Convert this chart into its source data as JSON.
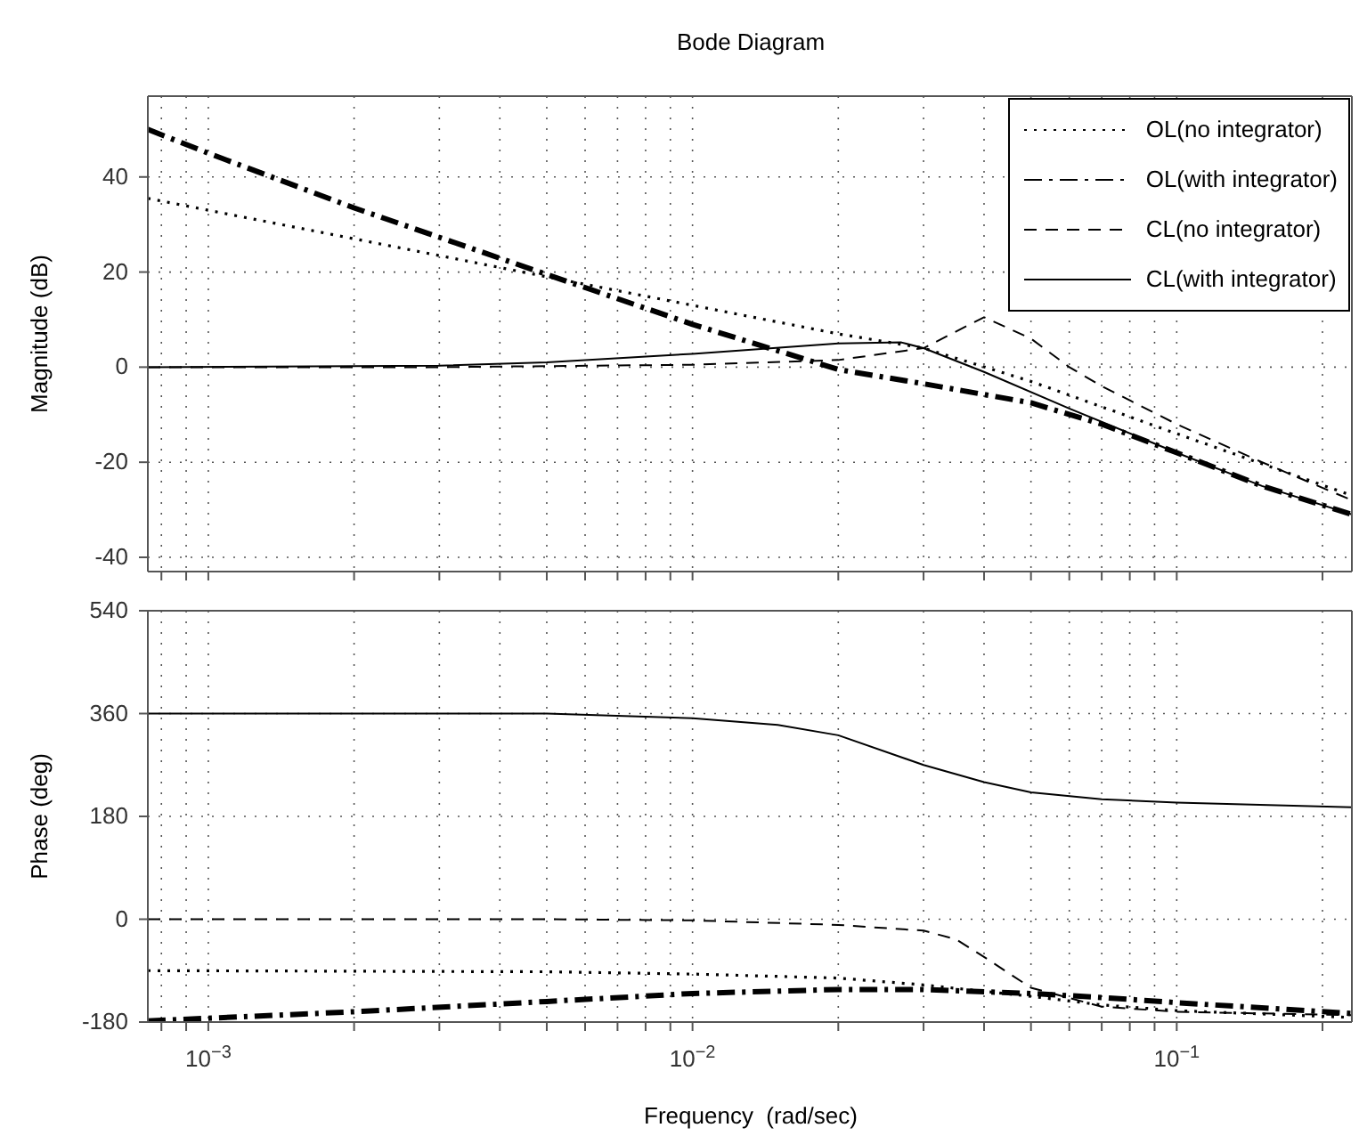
{
  "chart_data": [
    {
      "type": "line",
      "title": "Bode Diagram",
      "ylabel": "Magnitude (dB)",
      "log": "x",
      "grid": true,
      "legend": "top right",
      "tick_labels": "y",
      "marker": "none",
      "xlim": [
        0.00075,
        0.23
      ],
      "ylim": [
        -43,
        57
      ],
      "yticks": [
        -40,
        -20,
        0,
        20,
        40
      ],
      "xticks": [
        {
          "value": 0.0008,
          "label": null
        },
        {
          "value": 0.0009,
          "label": null
        },
        {
          "value": 0.001,
          "label": null
        },
        {
          "value": 0.002,
          "label": null
        },
        {
          "value": 0.003,
          "label": null
        },
        {
          "value": 0.004,
          "label": null
        },
        {
          "value": 0.005,
          "label": null
        },
        {
          "value": 0.006,
          "label": null
        },
        {
          "value": 0.007,
          "label": null
        },
        {
          "value": 0.008,
          "label": null
        },
        {
          "value": 0.009,
          "label": null
        },
        {
          "value": 0.01,
          "label": null
        },
        {
          "value": 0.02,
          "label": null
        },
        {
          "value": 0.03,
          "label": null
        },
        {
          "value": 0.04,
          "label": null
        },
        {
          "value": 0.05,
          "label": null
        },
        {
          "value": 0.06,
          "label": null
        },
        {
          "value": 0.07,
          "label": null
        },
        {
          "value": 0.08,
          "label": null
        },
        {
          "value": 0.09,
          "label": null
        },
        {
          "value": 0.1,
          "label": null
        },
        {
          "value": 0.2,
          "label": null
        }
      ],
      "series": [
        {
          "name": "OL(no integrator)",
          "color": "#000000",
          "line_style": "dotted",
          "x": [
            0.00075,
            0.001,
            0.002,
            0.005,
            0.01,
            0.02,
            0.03,
            0.05,
            0.1,
            0.23
          ],
          "values": [
            35.5,
            33,
            27,
            19,
            13,
            7,
            4,
            -3,
            -14,
            -27
          ]
        },
        {
          "name": "OL(with integrator)",
          "color": "#000000",
          "line_style": "dashdot",
          "x": [
            0.00075,
            0.001,
            0.002,
            0.005,
            0.01,
            0.02,
            0.03,
            0.05,
            0.07,
            0.1,
            0.15,
            0.23
          ],
          "values": [
            50,
            45,
            33.5,
            19.5,
            9,
            -0.5,
            -3.5,
            -7.5,
            -12,
            -18,
            -25,
            -31
          ]
        },
        {
          "name": "CL(no integrator)",
          "color": "#000000",
          "line_style": "dashed",
          "x": [
            0.00075,
            0.003,
            0.01,
            0.02,
            0.03,
            0.04,
            0.05,
            0.06,
            0.07,
            0.1,
            0.15,
            0.23
          ],
          "values": [
            0,
            0,
            0.5,
            1.5,
            4,
            10.5,
            6,
            0,
            -4,
            -12,
            -20,
            -28
          ]
        },
        {
          "name": "CL(with integrator)",
          "color": "#000000",
          "line_style": "solid",
          "x": [
            0.00075,
            0.003,
            0.005,
            0.01,
            0.02,
            0.027,
            0.03,
            0.04,
            0.06,
            0.1,
            0.15,
            0.23
          ],
          "values": [
            0,
            0.3,
            1,
            2.8,
            5,
            5.2,
            4,
            -1,
            -8.7,
            -18,
            -25,
            -31
          ]
        }
      ]
    },
    {
      "type": "line",
      "xlabel": "Frequency  (rad/sec)",
      "ylabel": "Phase (deg)",
      "log": "x",
      "grid": true,
      "marker": "none",
      "xlim": [
        0.00075,
        0.23
      ],
      "ylim": [
        -180,
        540
      ],
      "yticks": [
        -180,
        0,
        180,
        360,
        540
      ],
      "xticks": [
        {
          "value": 0.0008,
          "label": null
        },
        {
          "value": 0.0009,
          "label": null
        },
        {
          "value": 0.001,
          "label": "10$^{−3}$"
        },
        {
          "value": 0.002,
          "label": null
        },
        {
          "value": 0.003,
          "label": null
        },
        {
          "value": 0.004,
          "label": null
        },
        {
          "value": 0.005,
          "label": null
        },
        {
          "value": 0.006,
          "label": null
        },
        {
          "value": 0.007,
          "label": null
        },
        {
          "value": 0.008,
          "label": null
        },
        {
          "value": 0.009,
          "label": null
        },
        {
          "value": 0.01,
          "label": "10$^{−2}$"
        },
        {
          "value": 0.02,
          "label": null
        },
        {
          "value": 0.03,
          "label": null
        },
        {
          "value": 0.04,
          "label": null
        },
        {
          "value": 0.05,
          "label": null
        },
        {
          "value": 0.06,
          "label": null
        },
        {
          "value": 0.07,
          "label": null
        },
        {
          "value": 0.08,
          "label": null
        },
        {
          "value": 0.09,
          "label": null
        },
        {
          "value": 0.1,
          "label": "10$^{−1}$"
        },
        {
          "value": 0.2,
          "label": null
        }
      ],
      "series": [
        {
          "color": "#000000",
          "line_style": "dotted",
          "x": [
            0.00075,
            0.005,
            0.01,
            0.02,
            0.03,
            0.05,
            0.07,
            0.1,
            0.23
          ],
          "values": [
            -90,
            -92,
            -96,
            -103,
            -115,
            -135,
            -150,
            -160,
            -172
          ]
        },
        {
          "color": "#000000",
          "line_style": "dashdot",
          "x": [
            0.00075,
            0.002,
            0.005,
            0.01,
            0.02,
            0.03,
            0.05,
            0.07,
            0.1,
            0.23
          ],
          "values": [
            -178,
            -162,
            -144,
            -130,
            -123,
            -123,
            -130,
            -137,
            -146,
            -165
          ]
        },
        {
          "color": "#000000",
          "line_style": "dashed",
          "x": [
            0.00075,
            0.005,
            0.01,
            0.02,
            0.03,
            0.035,
            0.04,
            0.05,
            0.07,
            0.1,
            0.23
          ],
          "values": [
            0,
            0,
            -2,
            -10,
            -20,
            -35,
            -66,
            -120,
            -153,
            -162,
            -168
          ]
        },
        {
          "color": "#000000",
          "line_style": "solid",
          "x": [
            0.00075,
            0.005,
            0.01,
            0.015,
            0.02,
            0.03,
            0.04,
            0.05,
            0.07,
            0.1,
            0.23
          ],
          "values": [
            360,
            360,
            352,
            340,
            322,
            270,
            240,
            222,
            210,
            204,
            196
          ]
        }
      ]
    }
  ]
}
